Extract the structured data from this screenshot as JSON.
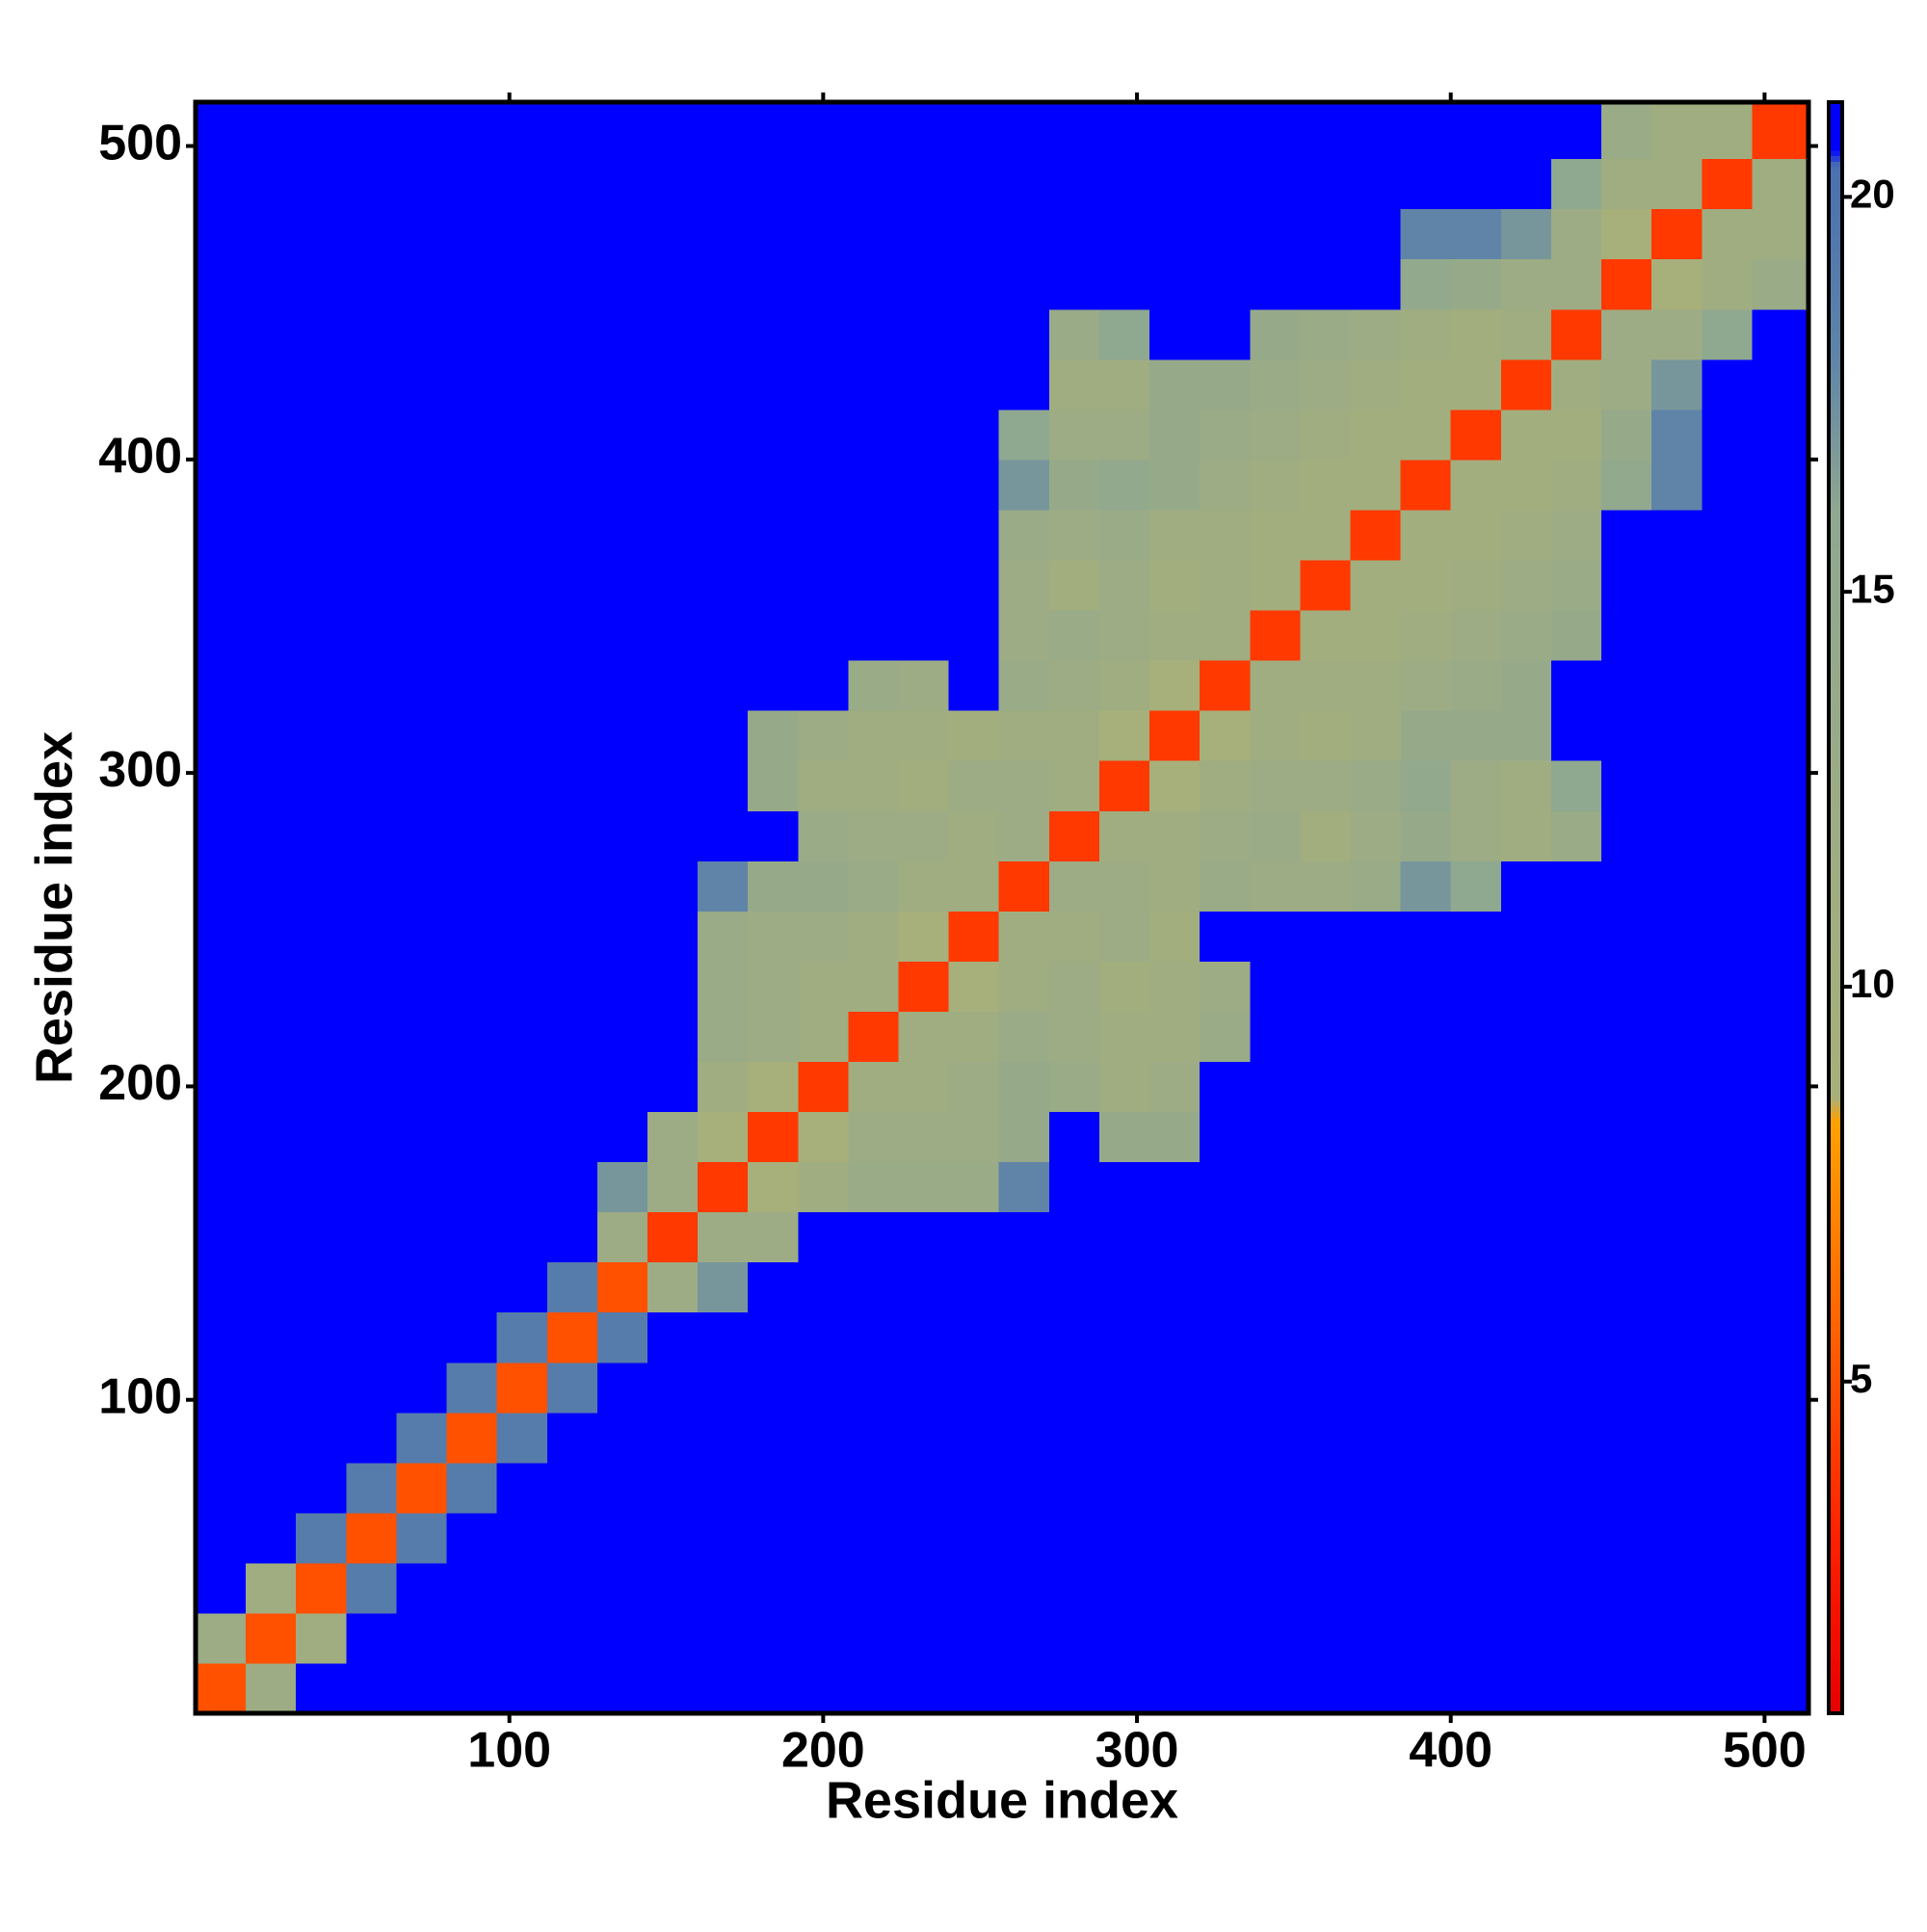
{
  "chart_data": {
    "type": "heatmap",
    "x_label": "Residue index",
    "y_label": "Residue index",
    "xbins": [
      0,
      16,
      32,
      48,
      64,
      80,
      96,
      112,
      128,
      144,
      160,
      176,
      192,
      208,
      224,
      240,
      256,
      272,
      288,
      304,
      320,
      336,
      352,
      368,
      384,
      400,
      416,
      432,
      448,
      464,
      480,
      496,
      514
    ],
    "ybins": [
      0,
      16,
      32,
      48,
      64,
      80,
      96,
      112,
      128,
      144,
      160,
      176,
      192,
      208,
      224,
      240,
      256,
      272,
      288,
      304,
      320,
      336,
      352,
      368,
      384,
      400,
      416,
      432,
      448,
      464,
      480,
      496,
      514
    ],
    "xlim": [
      0,
      514
    ],
    "ylim": [
      0,
      514
    ],
    "xticks": [
      100,
      200,
      300,
      400,
      500
    ],
    "yticks": [
      100,
      200,
      300,
      400,
      500
    ],
    "clim": [
      0.8,
      21.2
    ],
    "cticks": [
      5,
      10,
      15,
      20
    ],
    "colorscale": [
      [
        0.8,
        "#e60000"
      ],
      [
        3,
        "#ff2000"
      ],
      [
        6,
        "#ff6a00"
      ],
      [
        8.3,
        "#ffa000"
      ],
      [
        8.6,
        "#a8b07a"
      ],
      [
        16,
        "#8fa890"
      ],
      [
        18,
        "#5f84a8"
      ],
      [
        20.4,
        "#4a70b0"
      ],
      [
        20.6,
        "#0000ff"
      ],
      [
        21.2,
        "#0000ff"
      ]
    ],
    "z": [
      [
        5,
        12,
        21,
        21,
        21,
        21,
        21,
        21,
        21,
        21,
        21,
        21,
        21,
        21,
        21,
        21,
        21,
        21,
        21,
        21,
        21,
        21,
        21,
        21,
        21,
        21,
        21,
        21,
        21,
        21,
        21,
        21
      ],
      [
        12,
        5,
        11,
        21,
        21,
        21,
        21,
        21,
        21,
        21,
        21,
        21,
        21,
        21,
        21,
        21,
        21,
        21,
        21,
        21,
        21,
        21,
        21,
        21,
        21,
        21,
        21,
        21,
        21,
        21,
        21,
        21
      ],
      [
        21,
        11,
        5,
        19,
        21,
        21,
        21,
        21,
        21,
        21,
        21,
        21,
        21,
        21,
        21,
        21,
        21,
        21,
        21,
        21,
        21,
        21,
        21,
        21,
        21,
        21,
        21,
        21,
        21,
        21,
        21,
        21
      ],
      [
        21,
        21,
        19,
        5,
        19,
        21,
        21,
        21,
        21,
        21,
        21,
        21,
        21,
        21,
        21,
        21,
        21,
        21,
        21,
        21,
        21,
        21,
        21,
        21,
        21,
        21,
        21,
        21,
        21,
        21,
        21,
        21
      ],
      [
        21,
        21,
        21,
        19,
        5,
        19,
        21,
        21,
        21,
        21,
        21,
        21,
        21,
        21,
        21,
        21,
        21,
        21,
        21,
        21,
        21,
        21,
        21,
        21,
        21,
        21,
        21,
        21,
        21,
        21,
        21,
        21
      ],
      [
        21,
        21,
        21,
        21,
        19,
        5,
        19,
        21,
        21,
        21,
        21,
        21,
        21,
        21,
        21,
        21,
        21,
        21,
        21,
        21,
        21,
        21,
        21,
        21,
        21,
        21,
        21,
        21,
        21,
        21,
        21,
        21
      ],
      [
        21,
        21,
        21,
        21,
        21,
        19,
        5,
        19,
        21,
        21,
        21,
        21,
        21,
        21,
        21,
        21,
        21,
        21,
        21,
        21,
        21,
        21,
        21,
        21,
        21,
        21,
        21,
        21,
        21,
        21,
        21,
        21
      ],
      [
        21,
        21,
        21,
        21,
        21,
        21,
        19,
        5,
        19,
        21,
        21,
        21,
        21,
        21,
        21,
        21,
        21,
        21,
        21,
        21,
        21,
        21,
        21,
        21,
        21,
        21,
        21,
        21,
        21,
        21,
        21,
        21
      ],
      [
        21,
        21,
        21,
        21,
        21,
        21,
        21,
        19,
        5,
        12,
        17,
        21,
        21,
        21,
        21,
        21,
        21,
        21,
        21,
        21,
        21,
        21,
        21,
        21,
        21,
        21,
        21,
        21,
        21,
        21,
        21,
        21
      ],
      [
        21,
        21,
        21,
        21,
        21,
        21,
        21,
        21,
        12,
        4,
        12,
        12,
        21,
        21,
        21,
        21,
        21,
        21,
        21,
        21,
        21,
        21,
        21,
        21,
        21,
        21,
        21,
        21,
        21,
        21,
        21,
        21
      ],
      [
        21,
        21,
        21,
        21,
        21,
        21,
        21,
        21,
        17,
        12,
        4,
        9,
        11,
        13,
        13,
        13,
        18,
        21,
        21,
        21,
        21,
        21,
        21,
        21,
        21,
        21,
        21,
        21,
        21,
        21,
        21,
        21
      ],
      [
        21,
        21,
        21,
        21,
        21,
        21,
        21,
        21,
        21,
        12,
        9,
        4,
        9,
        12,
        12,
        12,
        14,
        21,
        14,
        14,
        21,
        21,
        21,
        21,
        21,
        21,
        21,
        21,
        21,
        21,
        21,
        21
      ],
      [
        21,
        21,
        21,
        21,
        21,
        21,
        21,
        21,
        21,
        21,
        11,
        9,
        4,
        11,
        11,
        12,
        14,
        13,
        11,
        12,
        21,
        21,
        21,
        21,
        21,
        21,
        21,
        21,
        21,
        21,
        21,
        21
      ],
      [
        21,
        21,
        21,
        21,
        21,
        21,
        21,
        21,
        21,
        21,
        13,
        12,
        11,
        4,
        11,
        11,
        13,
        12,
        11,
        11,
        13,
        21,
        21,
        21,
        21,
        21,
        21,
        21,
        21,
        21,
        21,
        21
      ],
      [
        21,
        21,
        21,
        21,
        21,
        21,
        21,
        21,
        21,
        21,
        13,
        12,
        11,
        11,
        4,
        9,
        11,
        12,
        10,
        11,
        12,
        21,
        21,
        21,
        21,
        21,
        21,
        21,
        21,
        21,
        21,
        21
      ],
      [
        21,
        21,
        21,
        21,
        21,
        21,
        21,
        21,
        21,
        21,
        13,
        12,
        12,
        11,
        9,
        4,
        11,
        11,
        12,
        10,
        21,
        21,
        21,
        21,
        21,
        21,
        21,
        21,
        21,
        21,
        21,
        21
      ],
      [
        21,
        21,
        21,
        21,
        21,
        21,
        21,
        21,
        21,
        21,
        18,
        14,
        14,
        13,
        11,
        11,
        4,
        12,
        12,
        11,
        13,
        12,
        12,
        13,
        17,
        16,
        21,
        21,
        21,
        21,
        21,
        21
      ],
      [
        21,
        21,
        21,
        21,
        21,
        21,
        21,
        21,
        21,
        21,
        21,
        21,
        13,
        12,
        12,
        11,
        12,
        4,
        11,
        11,
        12,
        13,
        10,
        12,
        14,
        12,
        11,
        13,
        21,
        21,
        21,
        21
      ],
      [
        21,
        21,
        21,
        21,
        21,
        21,
        21,
        21,
        21,
        21,
        21,
        14,
        11,
        11,
        10,
        12,
        12,
        11,
        4,
        9,
        11,
        12,
        12,
        13,
        15,
        12,
        11,
        16,
        21,
        21,
        21,
        21
      ],
      [
        21,
        21,
        21,
        21,
        21,
        21,
        21,
        21,
        21,
        21,
        21,
        14,
        12,
        11,
        11,
        10,
        11,
        11,
        9,
        4,
        9,
        11,
        10,
        11,
        14,
        14,
        14,
        21,
        21,
        21,
        21,
        21
      ],
      [
        21,
        21,
        21,
        21,
        21,
        21,
        21,
        21,
        21,
        21,
        21,
        21,
        21,
        13,
        12,
        21,
        13,
        12,
        11,
        9,
        4,
        11,
        11,
        11,
        12,
        13,
        14,
        21,
        21,
        21,
        21,
        21
      ],
      [
        21,
        21,
        21,
        21,
        21,
        21,
        21,
        21,
        21,
        21,
        21,
        21,
        21,
        21,
        21,
        21,
        12,
        13,
        12,
        11,
        11,
        4,
        10,
        10,
        11,
        12,
        13,
        14,
        21,
        21,
        21,
        21
      ],
      [
        21,
        21,
        21,
        21,
        21,
        21,
        21,
        21,
        21,
        21,
        21,
        21,
        21,
        21,
        21,
        21,
        12,
        10,
        12,
        10,
        11,
        10,
        4,
        10,
        10,
        11,
        12,
        13,
        21,
        21,
        21,
        21
      ],
      [
        21,
        21,
        21,
        21,
        21,
        21,
        21,
        21,
        21,
        21,
        21,
        21,
        21,
        21,
        21,
        21,
        13,
        12,
        13,
        11,
        11,
        10,
        10,
        4,
        10,
        10,
        11,
        12,
        21,
        21,
        21,
        21
      ],
      [
        21,
        21,
        21,
        21,
        21,
        21,
        21,
        21,
        21,
        21,
        21,
        21,
        21,
        21,
        21,
        21,
        17,
        14,
        15,
        14,
        12,
        11,
        10,
        10,
        4,
        10,
        10,
        11,
        15,
        18,
        21,
        21
      ],
      [
        21,
        21,
        21,
        21,
        21,
        21,
        21,
        21,
        21,
        21,
        21,
        21,
        21,
        21,
        21,
        21,
        16,
        12,
        12,
        14,
        13,
        12,
        11,
        10,
        10,
        4,
        10,
        10,
        14,
        18,
        21,
        21
      ],
      [
        21,
        21,
        21,
        21,
        21,
        21,
        21,
        21,
        21,
        21,
        21,
        21,
        21,
        21,
        21,
        21,
        21,
        11,
        11,
        14,
        14,
        13,
        12,
        11,
        10,
        10,
        4,
        11,
        12,
        17,
        21,
        21
      ],
      [
        21,
        21,
        21,
        21,
        21,
        21,
        21,
        21,
        21,
        21,
        21,
        21,
        21,
        21,
        21,
        21,
        21,
        13,
        16,
        21,
        21,
        14,
        13,
        12,
        11,
        10,
        11,
        4,
        12,
        12,
        16,
        21
      ],
      [
        21,
        21,
        21,
        21,
        21,
        21,
        21,
        21,
        21,
        21,
        21,
        21,
        21,
        21,
        21,
        21,
        21,
        21,
        21,
        21,
        21,
        21,
        21,
        21,
        15,
        14,
        12,
        12,
        4,
        9,
        11,
        13
      ],
      [
        21,
        21,
        21,
        21,
        21,
        21,
        21,
        21,
        21,
        21,
        21,
        21,
        21,
        21,
        21,
        21,
        21,
        21,
        21,
        21,
        21,
        21,
        21,
        21,
        18,
        18,
        17,
        12,
        9,
        4,
        11,
        11
      ],
      [
        21,
        21,
        21,
        21,
        21,
        21,
        21,
        21,
        21,
        21,
        21,
        21,
        21,
        21,
        21,
        21,
        21,
        21,
        21,
        21,
        21,
        21,
        21,
        21,
        21,
        21,
        21,
        16,
        11,
        11,
        4,
        11
      ],
      [
        21,
        21,
        21,
        21,
        21,
        21,
        21,
        21,
        21,
        21,
        21,
        21,
        21,
        21,
        21,
        21,
        21,
        21,
        21,
        21,
        21,
        21,
        21,
        21,
        21,
        21,
        21,
        21,
        13,
        11,
        11,
        4
      ]
    ]
  }
}
